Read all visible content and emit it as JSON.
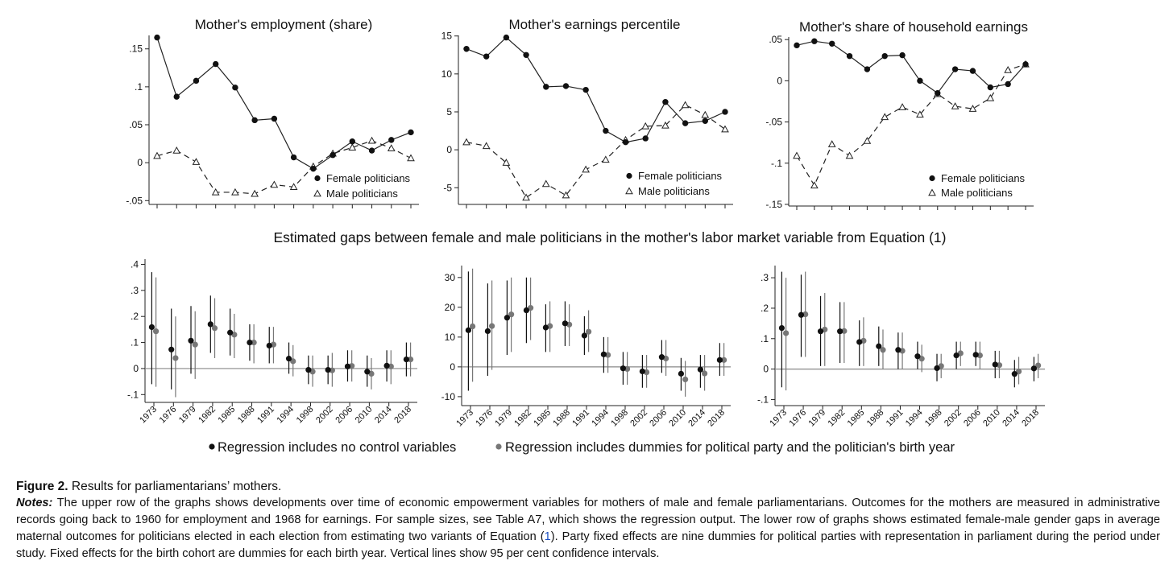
{
  "figure": {
    "middle_title": "Estimated gaps between female and male politicians in the mother's labor market variable from Equation (1)"
  },
  "chart_data": [
    {
      "type": "line",
      "title": "Mother's employment (share)",
      "x": [
        1973,
        1976,
        1979,
        1982,
        1985,
        1988,
        1991,
        1994,
        1998,
        2002,
        2006,
        2010,
        2014,
        2018
      ],
      "series": [
        {
          "name": "Female politicians",
          "marker": "filled-circle",
          "line": "solid",
          "values": [
            0.165,
            0.087,
            0.108,
            0.13,
            0.099,
            0.056,
            0.058,
            0.007,
            -0.008,
            0.01,
            0.028,
            0.016,
            0.03,
            0.04
          ]
        },
        {
          "name": "Male politicians",
          "marker": "hollow-triangle",
          "line": "dashed",
          "values": [
            0.009,
            0.016,
            0.001,
            -0.039,
            -0.039,
            -0.041,
            -0.029,
            -0.032,
            -0.005,
            0.012,
            0.02,
            0.029,
            0.019,
            0.006
          ]
        }
      ],
      "ylim": [
        -0.055,
        0.172
      ],
      "yticks": [
        -0.05,
        0,
        0.05,
        0.1,
        0.15
      ],
      "ytick_labels": [
        "-.05",
        "0",
        ".05",
        ".1",
        ".15"
      ],
      "legend": "bottom-right"
    },
    {
      "type": "line",
      "title": "Mother's earnings percentile",
      "x": [
        1973,
        1976,
        1979,
        1982,
        1985,
        1988,
        1991,
        1994,
        1998,
        2002,
        2006,
        2010,
        2014,
        2018
      ],
      "series": [
        {
          "name": "Female politicians",
          "marker": "filled-circle",
          "line": "solid",
          "values": [
            13.3,
            12.3,
            14.8,
            12.5,
            8.3,
            8.4,
            7.9,
            2.5,
            1.0,
            1.5,
            6.3,
            3.5,
            3.8,
            5.0
          ]
        },
        {
          "name": "Male politicians",
          "marker": "hollow-triangle",
          "line": "dashed",
          "values": [
            1.0,
            0.5,
            -1.7,
            -6.3,
            -4.5,
            -6.0,
            -2.6,
            -1.3,
            1.3,
            3.1,
            3.2,
            5.9,
            4.6,
            2.7
          ]
        }
      ],
      "ylim": [
        -7.2,
        15.5
      ],
      "yticks": [
        -5,
        0,
        5,
        10,
        15
      ],
      "ytick_labels": [
        "-5",
        "0",
        "5",
        "10",
        "15"
      ],
      "legend": "bottom-right"
    },
    {
      "type": "line",
      "title": "Mother's share of household earnings",
      "x": [
        1973,
        1976,
        1979,
        1982,
        1985,
        1988,
        1991,
        1994,
        1998,
        2002,
        2006,
        2010,
        2014,
        2018
      ],
      "series": [
        {
          "name": "Female politicians",
          "marker": "filled-circle",
          "line": "solid",
          "values": [
            0.043,
            0.048,
            0.045,
            0.03,
            0.014,
            0.03,
            0.031,
            0.0,
            -0.015,
            0.014,
            0.012,
            -0.008,
            -0.004,
            0.02
          ]
        },
        {
          "name": "Male politicians",
          "marker": "hollow-triangle",
          "line": "dashed",
          "values": [
            -0.091,
            -0.127,
            -0.077,
            -0.091,
            -0.073,
            -0.044,
            -0.032,
            -0.041,
            -0.016,
            -0.031,
            -0.034,
            -0.021,
            0.013,
            0.02
          ]
        }
      ],
      "ylim": [
        -0.152,
        0.057
      ],
      "yticks": [
        -0.15,
        -0.1,
        -0.05,
        0,
        0.05
      ],
      "ytick_labels": [
        "-.15",
        "-.1",
        "-.05",
        "0",
        ".05"
      ],
      "legend": "bottom-right"
    },
    {
      "type": "scatter",
      "subtype": "point-estimates-with-95-percent-confidence-intervals",
      "categories": [
        "1973",
        "1976",
        "1979",
        "1982",
        "1985",
        "1988",
        "1991",
        "1994",
        "1998",
        "2002",
        "2006",
        "2010",
        "2014",
        "2018"
      ],
      "series": [
        {
          "name": "Regression includes no control variables",
          "color": "#111111",
          "values": [
            0.159,
            0.073,
            0.107,
            0.17,
            0.138,
            0.1,
            0.088,
            0.038,
            -0.005,
            -0.005,
            0.008,
            -0.012,
            0.011,
            0.035
          ],
          "ci_low": [
            -0.06,
            -0.08,
            -0.02,
            0.06,
            0.05,
            0.03,
            0.02,
            -0.02,
            -0.06,
            -0.06,
            -0.05,
            -0.07,
            -0.05,
            -0.03
          ],
          "ci_high": [
            0.37,
            0.23,
            0.24,
            0.28,
            0.23,
            0.17,
            0.16,
            0.1,
            0.05,
            0.05,
            0.07,
            0.05,
            0.07,
            0.1
          ]
        },
        {
          "name": "Regression includes dummies for political party and the politician's birth year",
          "color": "#777777",
          "values": [
            0.143,
            0.04,
            0.092,
            0.155,
            0.13,
            0.1,
            0.092,
            0.028,
            -0.012,
            -0.007,
            0.01,
            -0.02,
            0.008,
            0.035
          ],
          "ci_low": [
            -0.07,
            -0.11,
            -0.04,
            0.04,
            0.04,
            0.02,
            0.02,
            -0.03,
            -0.07,
            -0.07,
            -0.05,
            -0.08,
            -0.06,
            -0.03
          ],
          "ci_high": [
            0.35,
            0.2,
            0.22,
            0.27,
            0.21,
            0.17,
            0.16,
            0.09,
            0.05,
            0.06,
            0.07,
            0.04,
            0.07,
            0.1
          ]
        }
      ],
      "ylim": [
        -0.13,
        0.42
      ],
      "yticks": [
        -0.1,
        0,
        0.1,
        0.2,
        0.3,
        0.4
      ],
      "ytick_labels": [
        "-.1",
        "0",
        ".1",
        ".2",
        ".3",
        ".4"
      ],
      "reference_line": 0
    },
    {
      "type": "scatter",
      "subtype": "point-estimates-with-95-percent-confidence-intervals",
      "categories": [
        "1973",
        "1976",
        "1979",
        "1982",
        "1985",
        "1988",
        "1991",
        "1994",
        "1998",
        "2002",
        "2006",
        "2010",
        "2014",
        "2018"
      ],
      "series": [
        {
          "name": "Regression includes no control variables",
          "color": "#111111",
          "values": [
            12.3,
            12.0,
            16.5,
            19.0,
            13.2,
            14.6,
            10.5,
            4.2,
            -0.5,
            -1.5,
            3.3,
            -2.3,
            -0.9,
            2.3
          ],
          "ci_low": [
            -8,
            -3,
            4,
            8,
            5,
            7,
            4,
            -2,
            -6,
            -7,
            -2,
            -8,
            -7,
            -3
          ],
          "ci_high": [
            32,
            28,
            29,
            30,
            21,
            22,
            17,
            10,
            5,
            4,
            9,
            3,
            4,
            8
          ]
        },
        {
          "name": "Regression includes dummies for political party and the politician's birth year",
          "color": "#777777",
          "values": [
            13.6,
            13.7,
            17.6,
            19.8,
            13.7,
            14.2,
            11.8,
            4.0,
            -0.7,
            -1.8,
            2.8,
            -4.2,
            -2.2,
            2.3
          ],
          "ci_low": [
            -5,
            -1,
            5,
            9,
            5,
            7,
            5,
            -2,
            -6,
            -7,
            -3,
            -10,
            -8,
            -3
          ],
          "ci_high": [
            33,
            29,
            30,
            30,
            22,
            21,
            19,
            10,
            5,
            4,
            9,
            2,
            4,
            8
          ]
        }
      ],
      "ylim": [
        -13,
        34
      ],
      "yticks": [
        -10,
        0,
        10,
        20,
        30
      ],
      "ytick_labels": [
        "-10",
        "0",
        "10",
        "20",
        "30"
      ],
      "reference_line": 0
    },
    {
      "type": "scatter",
      "subtype": "point-estimates-with-95-percent-confidence-intervals",
      "categories": [
        "1973",
        "1976",
        "1979",
        "1982",
        "1985",
        "1988",
        "1991",
        "1994",
        "1998",
        "2002",
        "2006",
        "2010",
        "2014",
        "2018"
      ],
      "series": [
        {
          "name": "Regression includes no control variables",
          "color": "#111111",
          "values": [
            0.135,
            0.178,
            0.124,
            0.124,
            0.089,
            0.075,
            0.063,
            0.042,
            0.003,
            0.045,
            0.047,
            0.015,
            -0.016,
            0.002
          ],
          "ci_low": [
            -0.06,
            0.04,
            0.01,
            0.02,
            0.01,
            0.01,
            0.0,
            0.0,
            -0.04,
            0.0,
            0.01,
            -0.03,
            -0.06,
            -0.04
          ],
          "ci_high": [
            0.32,
            0.31,
            0.24,
            0.22,
            0.16,
            0.14,
            0.12,
            0.09,
            0.05,
            0.09,
            0.09,
            0.06,
            0.03,
            0.04
          ]
        },
        {
          "name": "Regression includes dummies for political party and the politician's birth year",
          "color": "#777777",
          "values": [
            0.118,
            0.18,
            0.13,
            0.125,
            0.093,
            0.063,
            0.06,
            0.034,
            0.01,
            0.052,
            0.045,
            0.013,
            -0.008,
            0.012
          ],
          "ci_low": [
            -0.07,
            0.04,
            0.01,
            0.02,
            0.01,
            0.0,
            0.0,
            -0.01,
            -0.03,
            0.01,
            0.0,
            -0.03,
            -0.05,
            -0.03
          ],
          "ci_high": [
            0.3,
            0.32,
            0.25,
            0.22,
            0.17,
            0.13,
            0.12,
            0.08,
            0.05,
            0.09,
            0.09,
            0.06,
            0.04,
            0.05
          ]
        }
      ],
      "ylim": [
        -0.12,
        0.34
      ],
      "yticks": [
        -0.1,
        0,
        0.1,
        0.2,
        0.3
      ],
      "ytick_labels": [
        "-.1",
        "0",
        ".1",
        ".2",
        ".3"
      ],
      "reference_line": 0
    }
  ],
  "bottom_legend": [
    {
      "label": "Regression includes no control variables",
      "color": "#111111"
    },
    {
      "label": "Regression includes dummies for political party and the politician's birth year",
      "color": "#777777"
    }
  ],
  "caption": {
    "label": "Figure 2.",
    "title": "Results for parliamentarians’ mothers.",
    "notes_label": "Notes:",
    "notes_before_ref": "The upper row of the graphs shows developments over time of economic empowerment variables for mothers of male and female parliamentarians. Outcomes for the mothers are measured in administrative records going back to 1960 for employment and 1968 for earnings. For sample sizes, see Table A7, which shows the regression output. The lower row of graphs shows estimated female-male gender gaps in average maternal outcomes for politicians elected in each election from estimating two variants of Equation (",
    "notes_ref": "1",
    "notes_after_ref": "). Party fixed effects are nine dummies for political parties with representation in parliament during the period under study. Fixed effects for the birth cohort are dummies for each birth year. Vertical lines show 95 per cent confidence intervals."
  }
}
